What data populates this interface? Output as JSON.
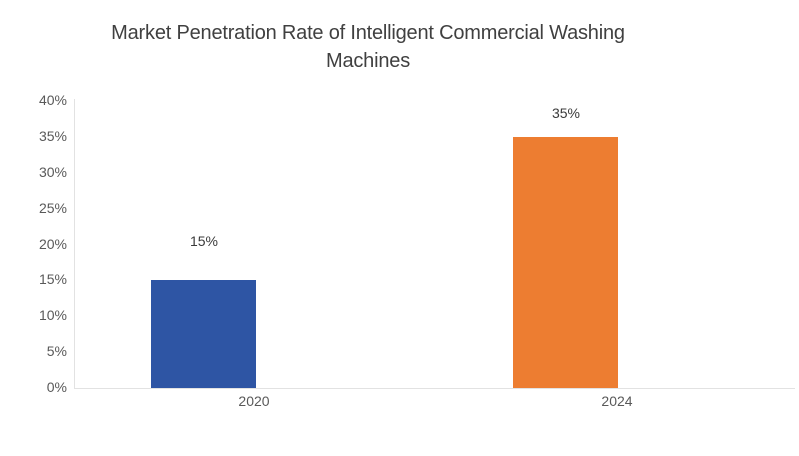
{
  "chart_data": {
    "type": "bar",
    "title": "Market Penetration Rate of Intelligent Commercial Washing Machines",
    "categories": [
      "2020",
      "2024"
    ],
    "values": [
      15,
      35
    ],
    "data_labels": [
      "15%",
      "35%"
    ],
    "yticks": [
      "0%",
      "5%",
      "10%",
      "15%",
      "20%",
      "25%",
      "30%",
      "35%",
      "40%"
    ],
    "ytick_step": 5,
    "ylim": [
      0,
      40
    ],
    "xlabel": "",
    "ylabel": "",
    "grid": false,
    "legend": "none",
    "bar_colors": [
      "#2E55A4",
      "#ED7D31"
    ],
    "axis_line_color": "#E2E2E2",
    "tick_label_color": "#595959",
    "data_label_color": "#3A3A3A",
    "title_color": "#404040",
    "background": "#FFFFFF"
  }
}
